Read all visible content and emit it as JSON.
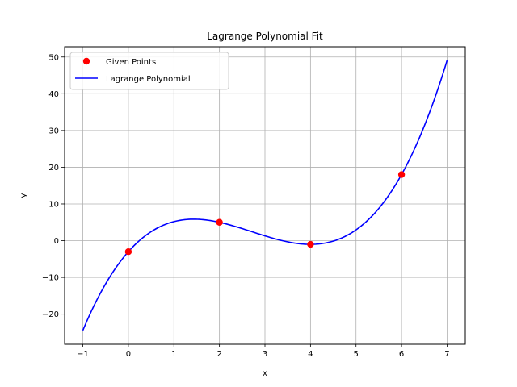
{
  "chart_data": {
    "type": "line",
    "title": "Lagrange Polynomial Fit",
    "xlabel": "x",
    "ylabel": "y",
    "xlim": [
      -1.4,
      7.4
    ],
    "ylim": [
      -28.2,
      52.8
    ],
    "xticks": [
      -1,
      0,
      1,
      2,
      3,
      4,
      5,
      6,
      7
    ],
    "yticks": [
      -20,
      -10,
      0,
      10,
      20,
      30,
      40,
      50
    ],
    "grid": true,
    "legend_position": "top-left",
    "series": [
      {
        "name": "Given Points",
        "kind": "scatter",
        "color": "#ff0000",
        "x": [
          0,
          2,
          4,
          6
        ],
        "y": [
          -3,
          5,
          -1,
          18
        ]
      },
      {
        "name": "Lagrange Polynomial",
        "kind": "line",
        "color": "#0000ff",
        "x_range": [
          -1,
          7
        ],
        "interpolates_series": "Given Points"
      }
    ]
  }
}
